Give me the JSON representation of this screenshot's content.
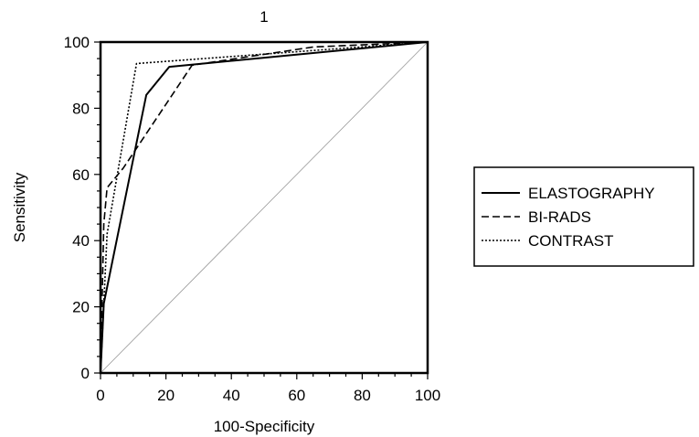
{
  "chart_data": {
    "type": "line",
    "title": "1",
    "xlabel": "100-Specificity",
    "ylabel": "Sensitivity",
    "xlim": [
      0,
      100
    ],
    "ylim": [
      0,
      100
    ],
    "xticks": [
      0,
      20,
      40,
      60,
      80,
      100
    ],
    "yticks": [
      0,
      20,
      40,
      60,
      80,
      100
    ],
    "grid": false,
    "legend_position": "right",
    "reference_line": [
      [
        0,
        0
      ],
      [
        100,
        100
      ]
    ],
    "series": [
      {
        "name": "ELASTOGRAPHY",
        "style": "solid",
        "points": [
          [
            0,
            0
          ],
          [
            1,
            21
          ],
          [
            14,
            84
          ],
          [
            21,
            92.5
          ],
          [
            100,
            100
          ]
        ]
      },
      {
        "name": "BI-RADS",
        "style": "dashed",
        "points": [
          [
            0,
            0
          ],
          [
            1,
            45
          ],
          [
            2,
            56
          ],
          [
            7,
            62
          ],
          [
            28,
            93
          ],
          [
            65,
            98.5
          ],
          [
            100,
            100
          ]
        ]
      },
      {
        "name": "CONTRAST",
        "style": "dotted",
        "points": [
          [
            0,
            0
          ],
          [
            2,
            42
          ],
          [
            11,
            93.5
          ],
          [
            100,
            100
          ]
        ]
      }
    ]
  }
}
